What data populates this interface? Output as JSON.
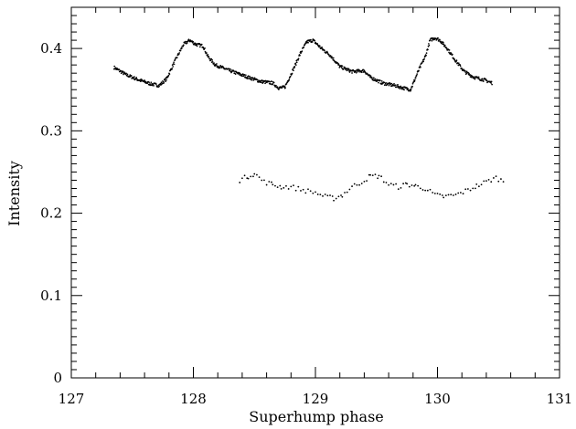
{
  "chart_data": {
    "type": "scatter",
    "title": "",
    "xlabel": "Superhump phase",
    "ylabel": "Intensity",
    "xlim": [
      127,
      131
    ],
    "ylim": [
      0,
      0.45
    ],
    "x_ticks": [
      127,
      128,
      129,
      130,
      131
    ],
    "y_ticks": [
      0,
      0.1,
      0.2,
      0.3,
      0.4
    ],
    "x_tick_labels": [
      "127",
      "128",
      "129",
      "130",
      "131"
    ],
    "y_tick_labels": [
      "0",
      "0.1",
      "0.2",
      "0.3",
      "0.4"
    ],
    "grid": false,
    "legend": "none",
    "series": [
      {
        "points_x": [
          127.35,
          127.45,
          127.55,
          127.65,
          127.72,
          127.78,
          127.85,
          127.92,
          127.97,
          128.02,
          128.08,
          128.12,
          128.18,
          128.3,
          128.45,
          128.55,
          128.65,
          128.7,
          128.75,
          128.82,
          128.88,
          128.93,
          128.98,
          129.05,
          129.12,
          129.2,
          129.3,
          129.4,
          129.45,
          129.55,
          129.65,
          129.72,
          129.78,
          129.85,
          129.9,
          129.94,
          129.98,
          130.02,
          130.08,
          130.15,
          130.22,
          130.3,
          130.38,
          130.45
        ],
        "points_y": [
          0.377,
          0.368,
          0.362,
          0.357,
          0.355,
          0.363,
          0.385,
          0.405,
          0.41,
          0.405,
          0.403,
          0.39,
          0.38,
          0.373,
          0.365,
          0.36,
          0.358,
          0.352,
          0.353,
          0.375,
          0.395,
          0.408,
          0.41,
          0.4,
          0.392,
          0.378,
          0.372,
          0.373,
          0.365,
          0.358,
          0.355,
          0.352,
          0.35,
          0.375,
          0.39,
          0.41,
          0.413,
          0.41,
          0.4,
          0.385,
          0.372,
          0.365,
          0.362,
          0.358
        ]
      },
      {
        "points_x": [
          128.38,
          128.45,
          128.5,
          128.58,
          128.65,
          128.72,
          128.8,
          128.9,
          129.0,
          129.08,
          129.15,
          129.22,
          129.3,
          129.38,
          129.45,
          129.52,
          129.6,
          129.68,
          129.75,
          129.82,
          129.9,
          129.98,
          130.05,
          130.15,
          130.25,
          130.32,
          130.4,
          130.48,
          130.55
        ],
        "points_y": [
          0.24,
          0.245,
          0.248,
          0.238,
          0.235,
          0.232,
          0.232,
          0.228,
          0.225,
          0.22,
          0.218,
          0.222,
          0.232,
          0.238,
          0.245,
          0.245,
          0.235,
          0.232,
          0.235,
          0.233,
          0.23,
          0.222,
          0.22,
          0.222,
          0.228,
          0.233,
          0.238,
          0.243,
          0.238
        ]
      }
    ]
  }
}
